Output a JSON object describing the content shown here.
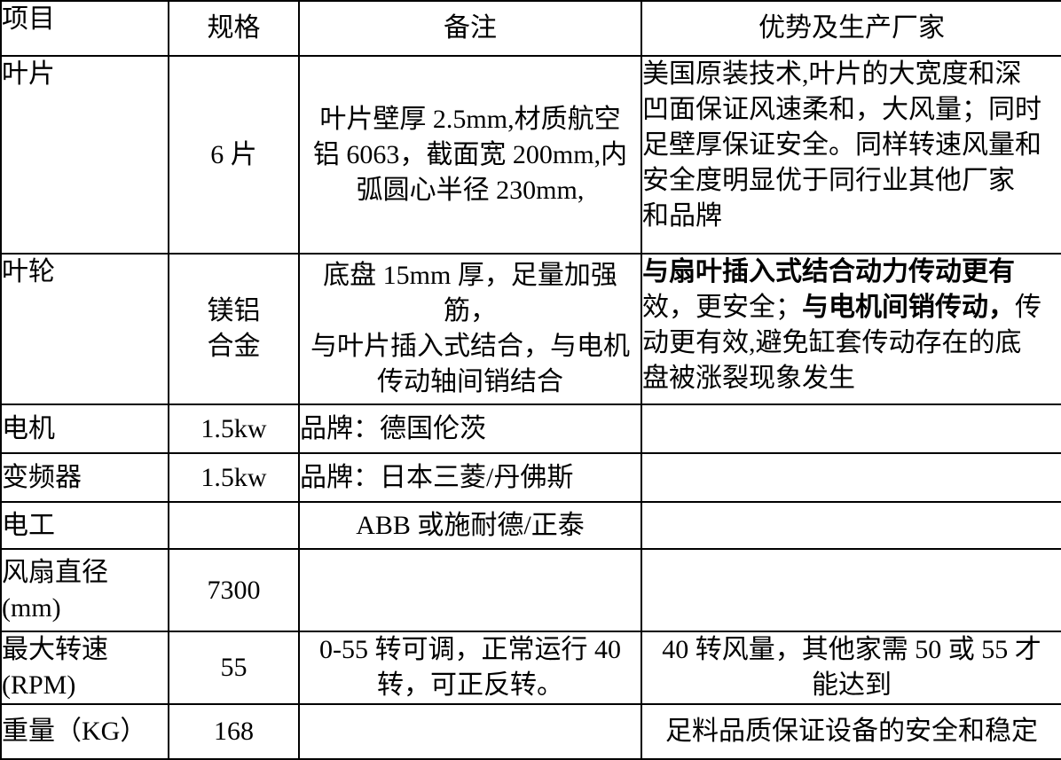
{
  "accent_colors": {
    "text": "#000000",
    "border": "#000000",
    "background": "#ffffff"
  },
  "table": {
    "headers": [
      "项目",
      "规格",
      "备注",
      "优势及生产厂家"
    ],
    "rows": [
      {
        "item": "叶片",
        "spec": "6 片",
        "note": "叶片壁厚 2.5mm,材质航空\n铝 6063，截面宽 200mm,内\n弧圆心半径 230mm,",
        "advantage": "美国原装技术,叶片的大宽度和深\n凹面保证风速柔和，大风量；同时\n足壁厚保证安全。同样转速风量和\n安全度明显优于同行业其他厂家\n和品牌"
      },
      {
        "item": "叶轮",
        "spec": "镁铝\n合金",
        "note": "底盘 15mm 厚，足量加强筋，\n与叶片插入式结合，与电机\n传动轴间销结合",
        "advantage_rich": [
          {
            "text": "与扇叶插入式结合动力传动更有\n",
            "bold": true
          },
          {
            "text": "效，更安全；",
            "bold": false
          },
          {
            "text": "与电机间销传动，",
            "bold": true
          },
          {
            "text": "传\n动更有效,避免缸套传动存在的底\n盘被涨裂现象发生",
            "bold": false
          }
        ]
      },
      {
        "item": "电机",
        "spec": "1.5kw",
        "note": "品牌：德国伦茨",
        "advantage": ""
      },
      {
        "item": "变频器",
        "spec": "1.5kw",
        "note": "品牌：日本三菱/丹佛斯",
        "advantage": ""
      },
      {
        "item": "电工",
        "spec": "",
        "note": "ABB 或施耐德/正泰",
        "advantage": ""
      },
      {
        "item": "风扇直径\n(mm)",
        "spec": "7300",
        "note": "",
        "advantage": ""
      },
      {
        "item": "最大转速\n(RPM)",
        "spec": "55",
        "note": "0-55 转可调，正常运行 40\n转，可正反转。",
        "advantage": "40 转风量，其他家需 50 或 55 才\n能达到"
      },
      {
        "item": "重量（KG）",
        "spec": "168",
        "note": "",
        "advantage": "足料品质保证设备的安全和稳定"
      }
    ]
  }
}
